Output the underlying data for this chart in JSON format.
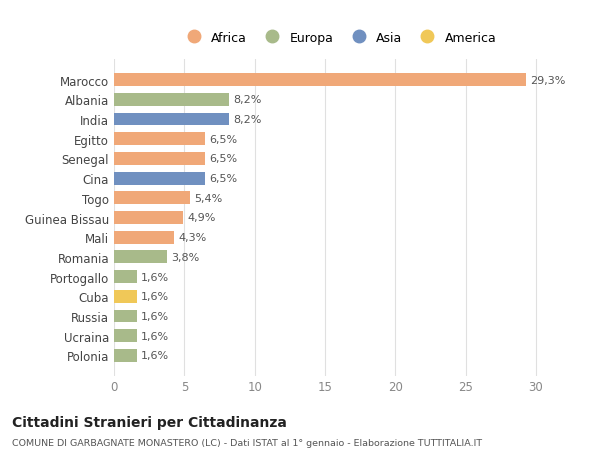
{
  "categories": [
    "Marocco",
    "Albania",
    "India",
    "Egitto",
    "Senegal",
    "Cina",
    "Togo",
    "Guinea Bissau",
    "Mali",
    "Romania",
    "Portogallo",
    "Cuba",
    "Russia",
    "Ucraina",
    "Polonia"
  ],
  "values": [
    29.3,
    8.2,
    8.2,
    6.5,
    6.5,
    6.5,
    5.4,
    4.9,
    4.3,
    3.8,
    1.6,
    1.6,
    1.6,
    1.6,
    1.6
  ],
  "labels": [
    "29,3%",
    "8,2%",
    "8,2%",
    "6,5%",
    "6,5%",
    "6,5%",
    "5,4%",
    "4,9%",
    "4,3%",
    "3,8%",
    "1,6%",
    "1,6%",
    "1,6%",
    "1,6%",
    "1,6%"
  ],
  "continents": [
    "Africa",
    "Europa",
    "Asia",
    "Africa",
    "Africa",
    "Asia",
    "Africa",
    "Africa",
    "Africa",
    "Europa",
    "Europa",
    "America",
    "Europa",
    "Europa",
    "Europa"
  ],
  "colors": {
    "Africa": "#F0A878",
    "Europa": "#A8BA8A",
    "Asia": "#7090C0",
    "America": "#F0C858"
  },
  "title": "Cittadini Stranieri per Cittadinanza",
  "subtitle": "COMUNE DI GARBAGNATE MONASTERO (LC) - Dati ISTAT al 1° gennaio - Elaborazione TUTTITALIA.IT",
  "xlim": [
    0,
    32
  ],
  "xticks": [
    0,
    5,
    10,
    15,
    20,
    25,
    30
  ],
  "background_color": "#ffffff",
  "grid_color": "#e0e0e0",
  "legend_order": [
    "Africa",
    "Europa",
    "Asia",
    "America"
  ]
}
